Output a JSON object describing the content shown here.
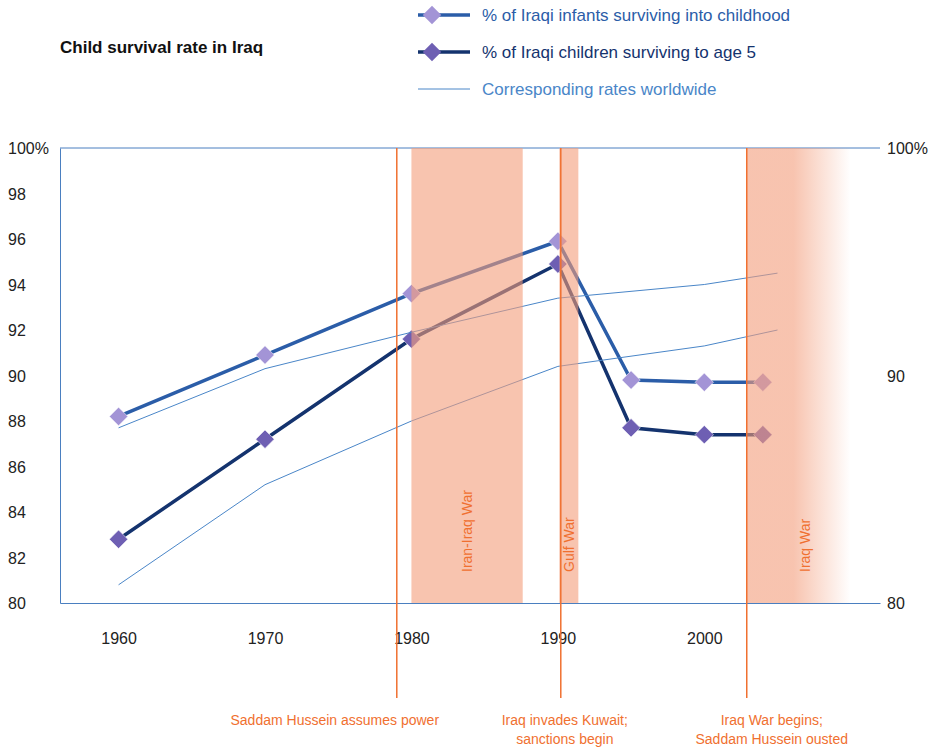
{
  "chart_data": {
    "type": "line",
    "title": "Child survival rate in Iraq",
    "xlim": [
      1956,
      2012
    ],
    "xticks": [
      1960,
      1970,
      1980,
      1990,
      2000
    ],
    "ylim": [
      80,
      100
    ],
    "yticks": [
      {
        "value": 100,
        "label": "100%"
      },
      98,
      96,
      94,
      92,
      90,
      88,
      86,
      84,
      82,
      80
    ],
    "y2lim": [
      80,
      100
    ],
    "y2ticks": [
      {
        "value": 100,
        "label": "100%"
      },
      90,
      80
    ],
    "grid": false,
    "legend": "top",
    "series": [
      {
        "name": "% of Iraqi infants surviving into childhood",
        "color": "#2b5da8",
        "marker": "diamond",
        "line_style": "solid",
        "x": [
          1960,
          1970,
          1980,
          1990,
          1995,
          2000,
          2004
        ],
        "values": [
          88.2,
          90.9,
          93.6,
          95.9,
          89.8,
          89.7,
          89.7
        ]
      },
      {
        "name": "% of Iraqi children surviving to age 5",
        "color": "#14336e",
        "marker": "diamond",
        "line_style": "solid",
        "x": [
          1960,
          1970,
          1980,
          1990,
          1995,
          2000,
          2004
        ],
        "values": [
          82.8,
          87.2,
          91.6,
          94.9,
          87.7,
          87.4,
          87.4
        ]
      },
      {
        "name": "Corresponding rates worldwide",
        "color": "#4a86c8",
        "marker": "none",
        "line_style": "solid",
        "x": [
          1960,
          1970,
          1980,
          1990,
          2000,
          2005
        ],
        "values": [
          87.7,
          90.3,
          91.9,
          93.4,
          94.0,
          94.5
        ]
      },
      {
        "color": "#4a86c8",
        "marker": "none",
        "line_style": "solid",
        "x": [
          1960,
          1970,
          1980,
          1990,
          2000,
          2005
        ],
        "values": [
          80.8,
          85.2,
          88.0,
          90.4,
          91.3,
          92.0
        ]
      }
    ],
    "bands": [
      {
        "start": 1980,
        "end": 1987.6,
        "label": "Iran-Iraq War"
      },
      {
        "start": 1990.1,
        "end": 1991.4,
        "label": "Gulf War"
      },
      {
        "start": 2002.9,
        "end": 2010,
        "label": "Iraq War"
      }
    ],
    "events": [
      {
        "x": 1979,
        "label": [
          "Saddam Hussein assumes power"
        ]
      },
      {
        "x": 1990.2,
        "label": [
          "Iraq invades Kuwait;",
          "sanctions begin"
        ]
      },
      {
        "x": 2002.9,
        "label": [
          "Iraq War begins;",
          "Saddam Hussein ousted"
        ]
      }
    ]
  }
}
